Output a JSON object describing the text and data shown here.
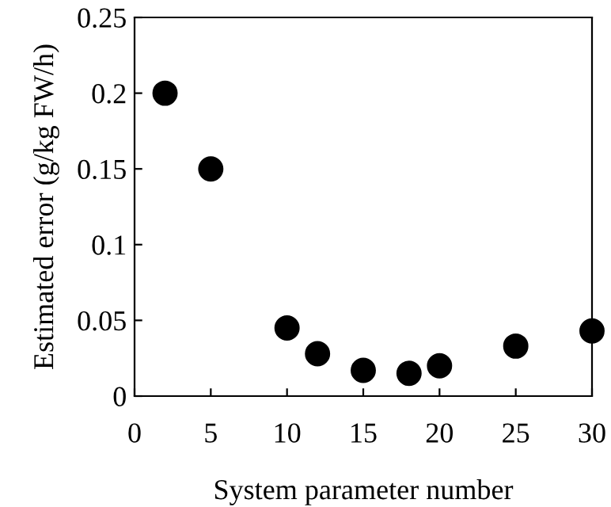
{
  "chart_data": {
    "type": "scatter",
    "xlabel": "System parameter number",
    "ylabel": "Estimated error (g/kg FW/h)",
    "x": [
      2,
      5,
      10,
      12,
      15,
      18,
      20,
      25,
      30
    ],
    "series": [
      {
        "color": "#000000",
        "values": [
          0.2,
          0.15,
          0.045,
          0.028,
          0.017,
          0.015,
          0.02,
          0.033,
          0.043
        ]
      }
    ],
    "xlim": [
      0,
      30
    ],
    "xticks": [
      0,
      5,
      10,
      15,
      20,
      25,
      30
    ],
    "ylim": [
      0,
      0.25
    ],
    "yticks": [
      0,
      0.05,
      0.1,
      0.15,
      0.2,
      0.25
    ],
    "marker": "circle",
    "grid": false,
    "legend": false
  }
}
